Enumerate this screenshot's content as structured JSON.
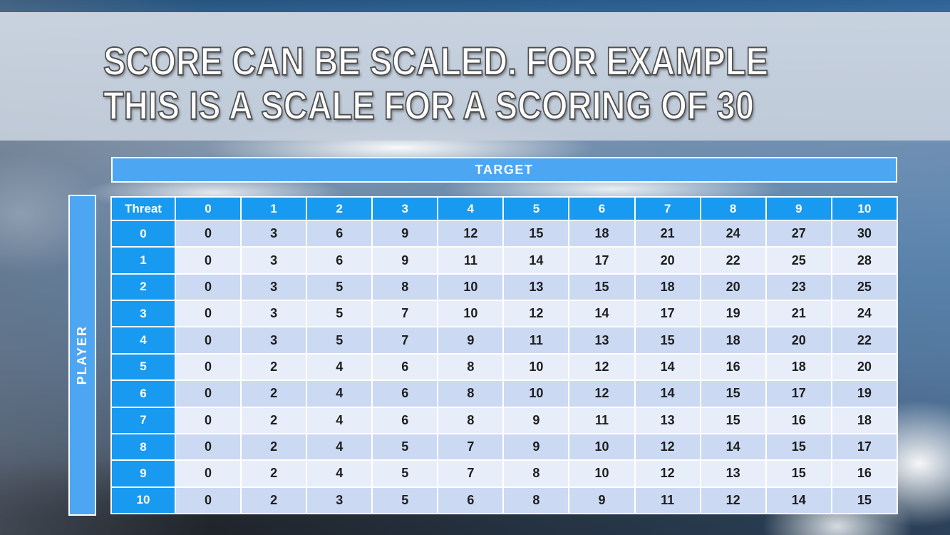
{
  "slide": {
    "title_line1": "SCORE CAN BE SCALED. FOR EXAMPLE",
    "title_line2": "THIS IS A SCALE FOR A SCORING OF 30"
  },
  "matrix": {
    "top_header": "TARGET",
    "side_header": "PLAYER",
    "corner_label": "Threat",
    "col_headers": [
      "0",
      "1",
      "2",
      "3",
      "4",
      "5",
      "6",
      "7",
      "8",
      "9",
      "10"
    ],
    "rows": [
      {
        "label": "0",
        "values": [
          0,
          3,
          6,
          9,
          12,
          15,
          18,
          21,
          24,
          27,
          30
        ]
      },
      {
        "label": "1",
        "values": [
          0,
          3,
          6,
          9,
          11,
          14,
          17,
          20,
          22,
          25,
          28
        ]
      },
      {
        "label": "2",
        "values": [
          0,
          3,
          5,
          8,
          10,
          13,
          15,
          18,
          20,
          23,
          25
        ]
      },
      {
        "label": "3",
        "values": [
          0,
          3,
          5,
          7,
          10,
          12,
          14,
          17,
          19,
          21,
          24
        ]
      },
      {
        "label": "4",
        "values": [
          0,
          3,
          5,
          7,
          9,
          11,
          13,
          15,
          18,
          20,
          22
        ]
      },
      {
        "label": "5",
        "values": [
          0,
          2,
          4,
          6,
          8,
          10,
          12,
          14,
          16,
          18,
          20
        ]
      },
      {
        "label": "6",
        "values": [
          0,
          2,
          4,
          6,
          8,
          10,
          12,
          14,
          15,
          17,
          19
        ]
      },
      {
        "label": "7",
        "values": [
          0,
          2,
          4,
          6,
          8,
          9,
          11,
          13,
          15,
          16,
          18
        ]
      },
      {
        "label": "8",
        "values": [
          0,
          2,
          4,
          5,
          7,
          9,
          10,
          12,
          14,
          15,
          17
        ]
      },
      {
        "label": "9",
        "values": [
          0,
          2,
          4,
          5,
          7,
          8,
          10,
          12,
          13,
          15,
          16
        ]
      },
      {
        "label": "10",
        "values": [
          0,
          2,
          3,
          5,
          6,
          8,
          9,
          11,
          12,
          14,
          15
        ]
      }
    ]
  },
  "colors": {
    "header_blue": "#189af0",
    "banner_blue": "#4da6f2",
    "row_even": "#cbd9f3",
    "row_odd": "#e8edfa",
    "body_text": "#1e1e1e"
  }
}
